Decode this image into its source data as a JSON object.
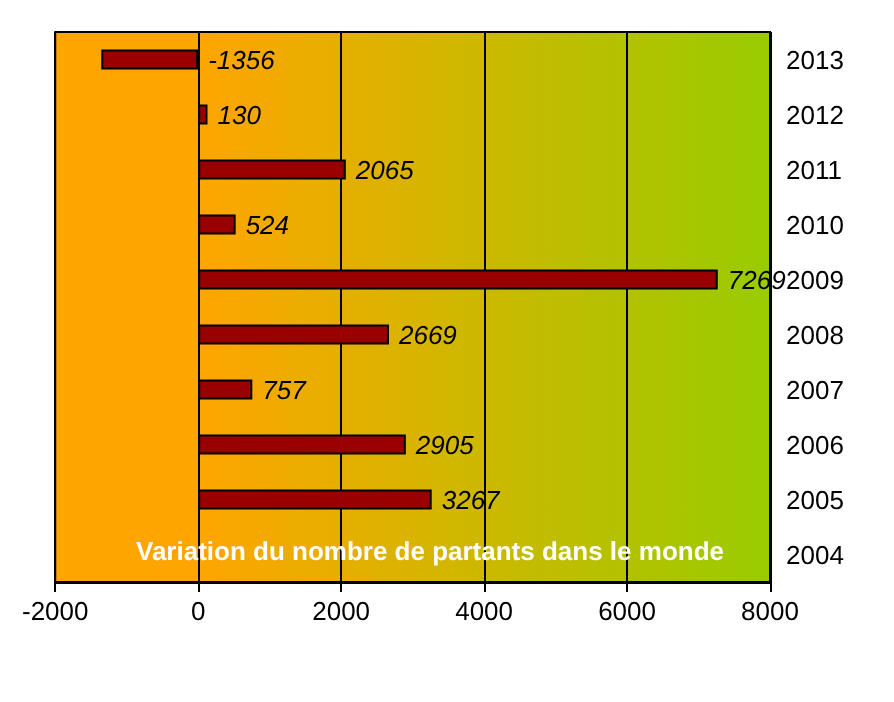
{
  "chart_data": {
    "type": "bar",
    "orientation": "horizontal",
    "title": "Variation du nombre de partants dans le monde",
    "categories": [
      "2013",
      "2012",
      "2011",
      "2010",
      "2009",
      "2008",
      "2007",
      "2006",
      "2005",
      "2004"
    ],
    "values": [
      -1356,
      130,
      2065,
      524,
      7269,
      2669,
      757,
      2905,
      3267,
      null
    ],
    "color": "#990000",
    "xlim": [
      -2000,
      8000
    ],
    "xticks": [
      -2000,
      0,
      2000,
      4000,
      6000,
      8000
    ],
    "grid": "x",
    "data_labels": true
  }
}
